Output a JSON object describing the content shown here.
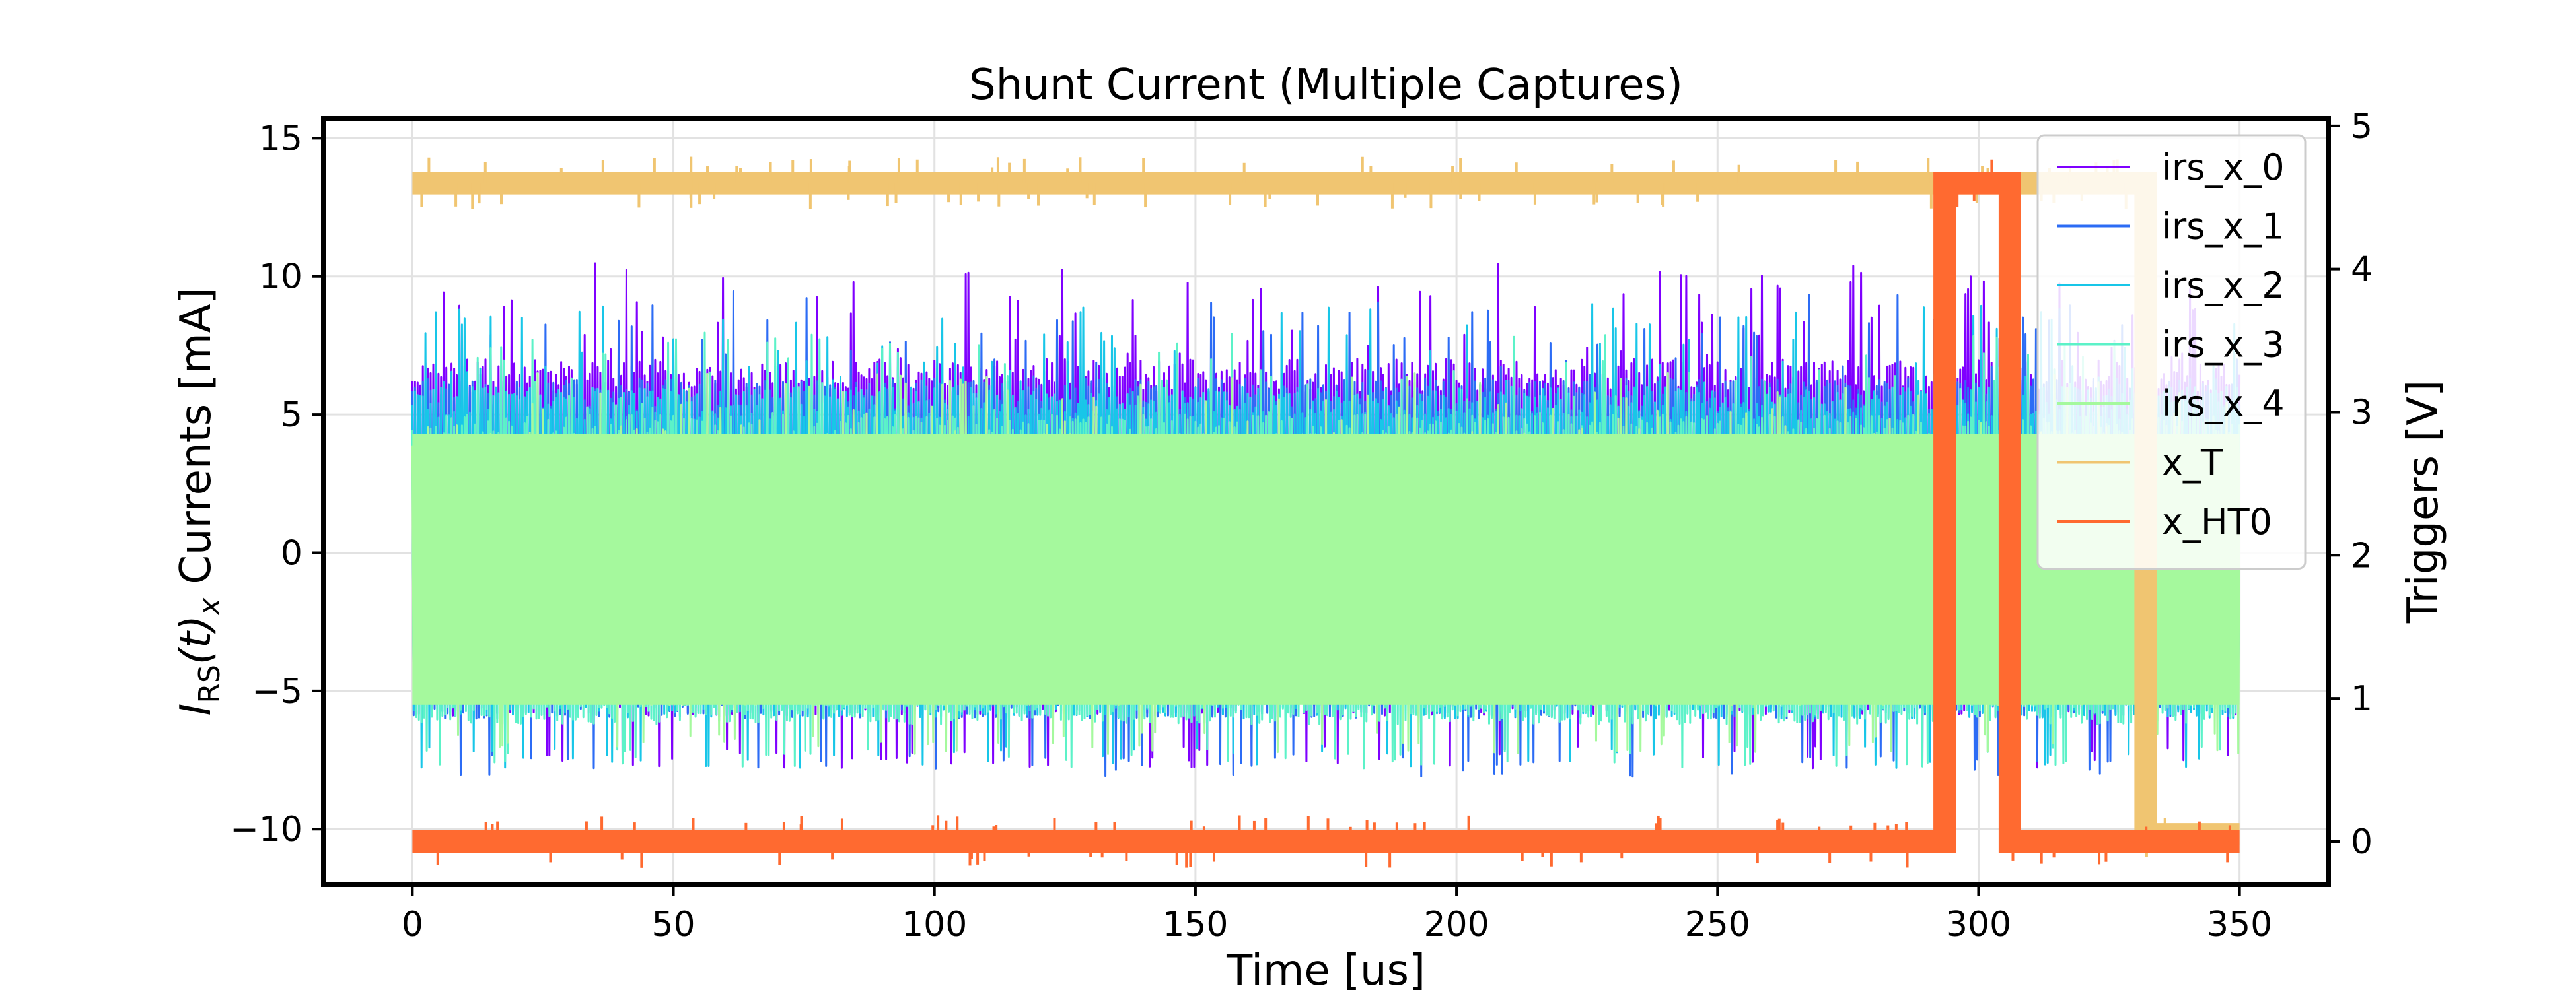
{
  "chart_data": {
    "type": "line",
    "title": "Shunt Current (Multiple Captures)",
    "xlabel": "Time [us]",
    "ylabel_base": "I",
    "ylabel_sub": "RS",
    "ylabel_mid": "(t)",
    "ylabel_sub2": "x",
    "ylabel_rest": " Currents [mA]",
    "y2label": "Triggers [V]",
    "xlim": [
      -17,
      367
    ],
    "ylim": [
      -12,
      15.7
    ],
    "y2lim": [
      -0.3,
      5.05
    ],
    "xticks": [
      0,
      50,
      100,
      150,
      200,
      250,
      300,
      350
    ],
    "xtick_labels": [
      "0",
      "50",
      "100",
      "150",
      "200",
      "250",
      "300",
      "350"
    ],
    "yticks": [
      -10,
      -5,
      0,
      5,
      10,
      15
    ],
    "ytick_labels": [
      "−10",
      "−5",
      "0",
      "5",
      "10",
      "15"
    ],
    "y2ticks": [
      0,
      1,
      2,
      3,
      4,
      5
    ],
    "y2tick_labels": [
      "0",
      "1",
      "2",
      "3",
      "4",
      "5"
    ],
    "grid": true,
    "legend_position": "top-right",
    "series": [
      {
        "name": "irs_x_0",
        "axis": "left",
        "color": "#7f00ff",
        "band": [
          -5.9,
          7.0
        ],
        "peaks": [
          9.0,
          -7.0
        ]
      },
      {
        "name": "irs_x_1",
        "axis": "left",
        "color": "#2c6cf5",
        "band": [
          -6.0,
          6.3
        ],
        "peaks": [
          8.0,
          -7.3
        ]
      },
      {
        "name": "irs_x_2",
        "axis": "left",
        "color": "#18c6e8",
        "band": [
          -6.0,
          6.0
        ],
        "peaks": [
          7.5,
          -7.0
        ]
      },
      {
        "name": "irs_x_3",
        "axis": "left",
        "color": "#5cf2c8",
        "band": [
          -6.2,
          5.0
        ],
        "peaks": [
          6.5,
          -7.0
        ]
      },
      {
        "name": "irs_x_4",
        "axis": "left",
        "color": "#a5f99d",
        "band": [
          -5.5,
          4.3
        ],
        "peaks": [
          5.0,
          -6.5
        ]
      },
      {
        "name": "x_T",
        "axis": "right",
        "color": "#f0c571",
        "segments": [
          [
            0,
            292,
            4.6
          ],
          [
            292,
            306,
            4.6
          ],
          [
            306,
            332,
            4.6
          ],
          [
            332,
            350,
            0.05
          ]
        ]
      },
      {
        "name": "x_HT0",
        "axis": "right",
        "color": "#ff6a30",
        "segments": [
          [
            0,
            293.5,
            0.0
          ],
          [
            293.5,
            306,
            4.6
          ],
          [
            306,
            350,
            0.0
          ]
        ]
      }
    ]
  }
}
